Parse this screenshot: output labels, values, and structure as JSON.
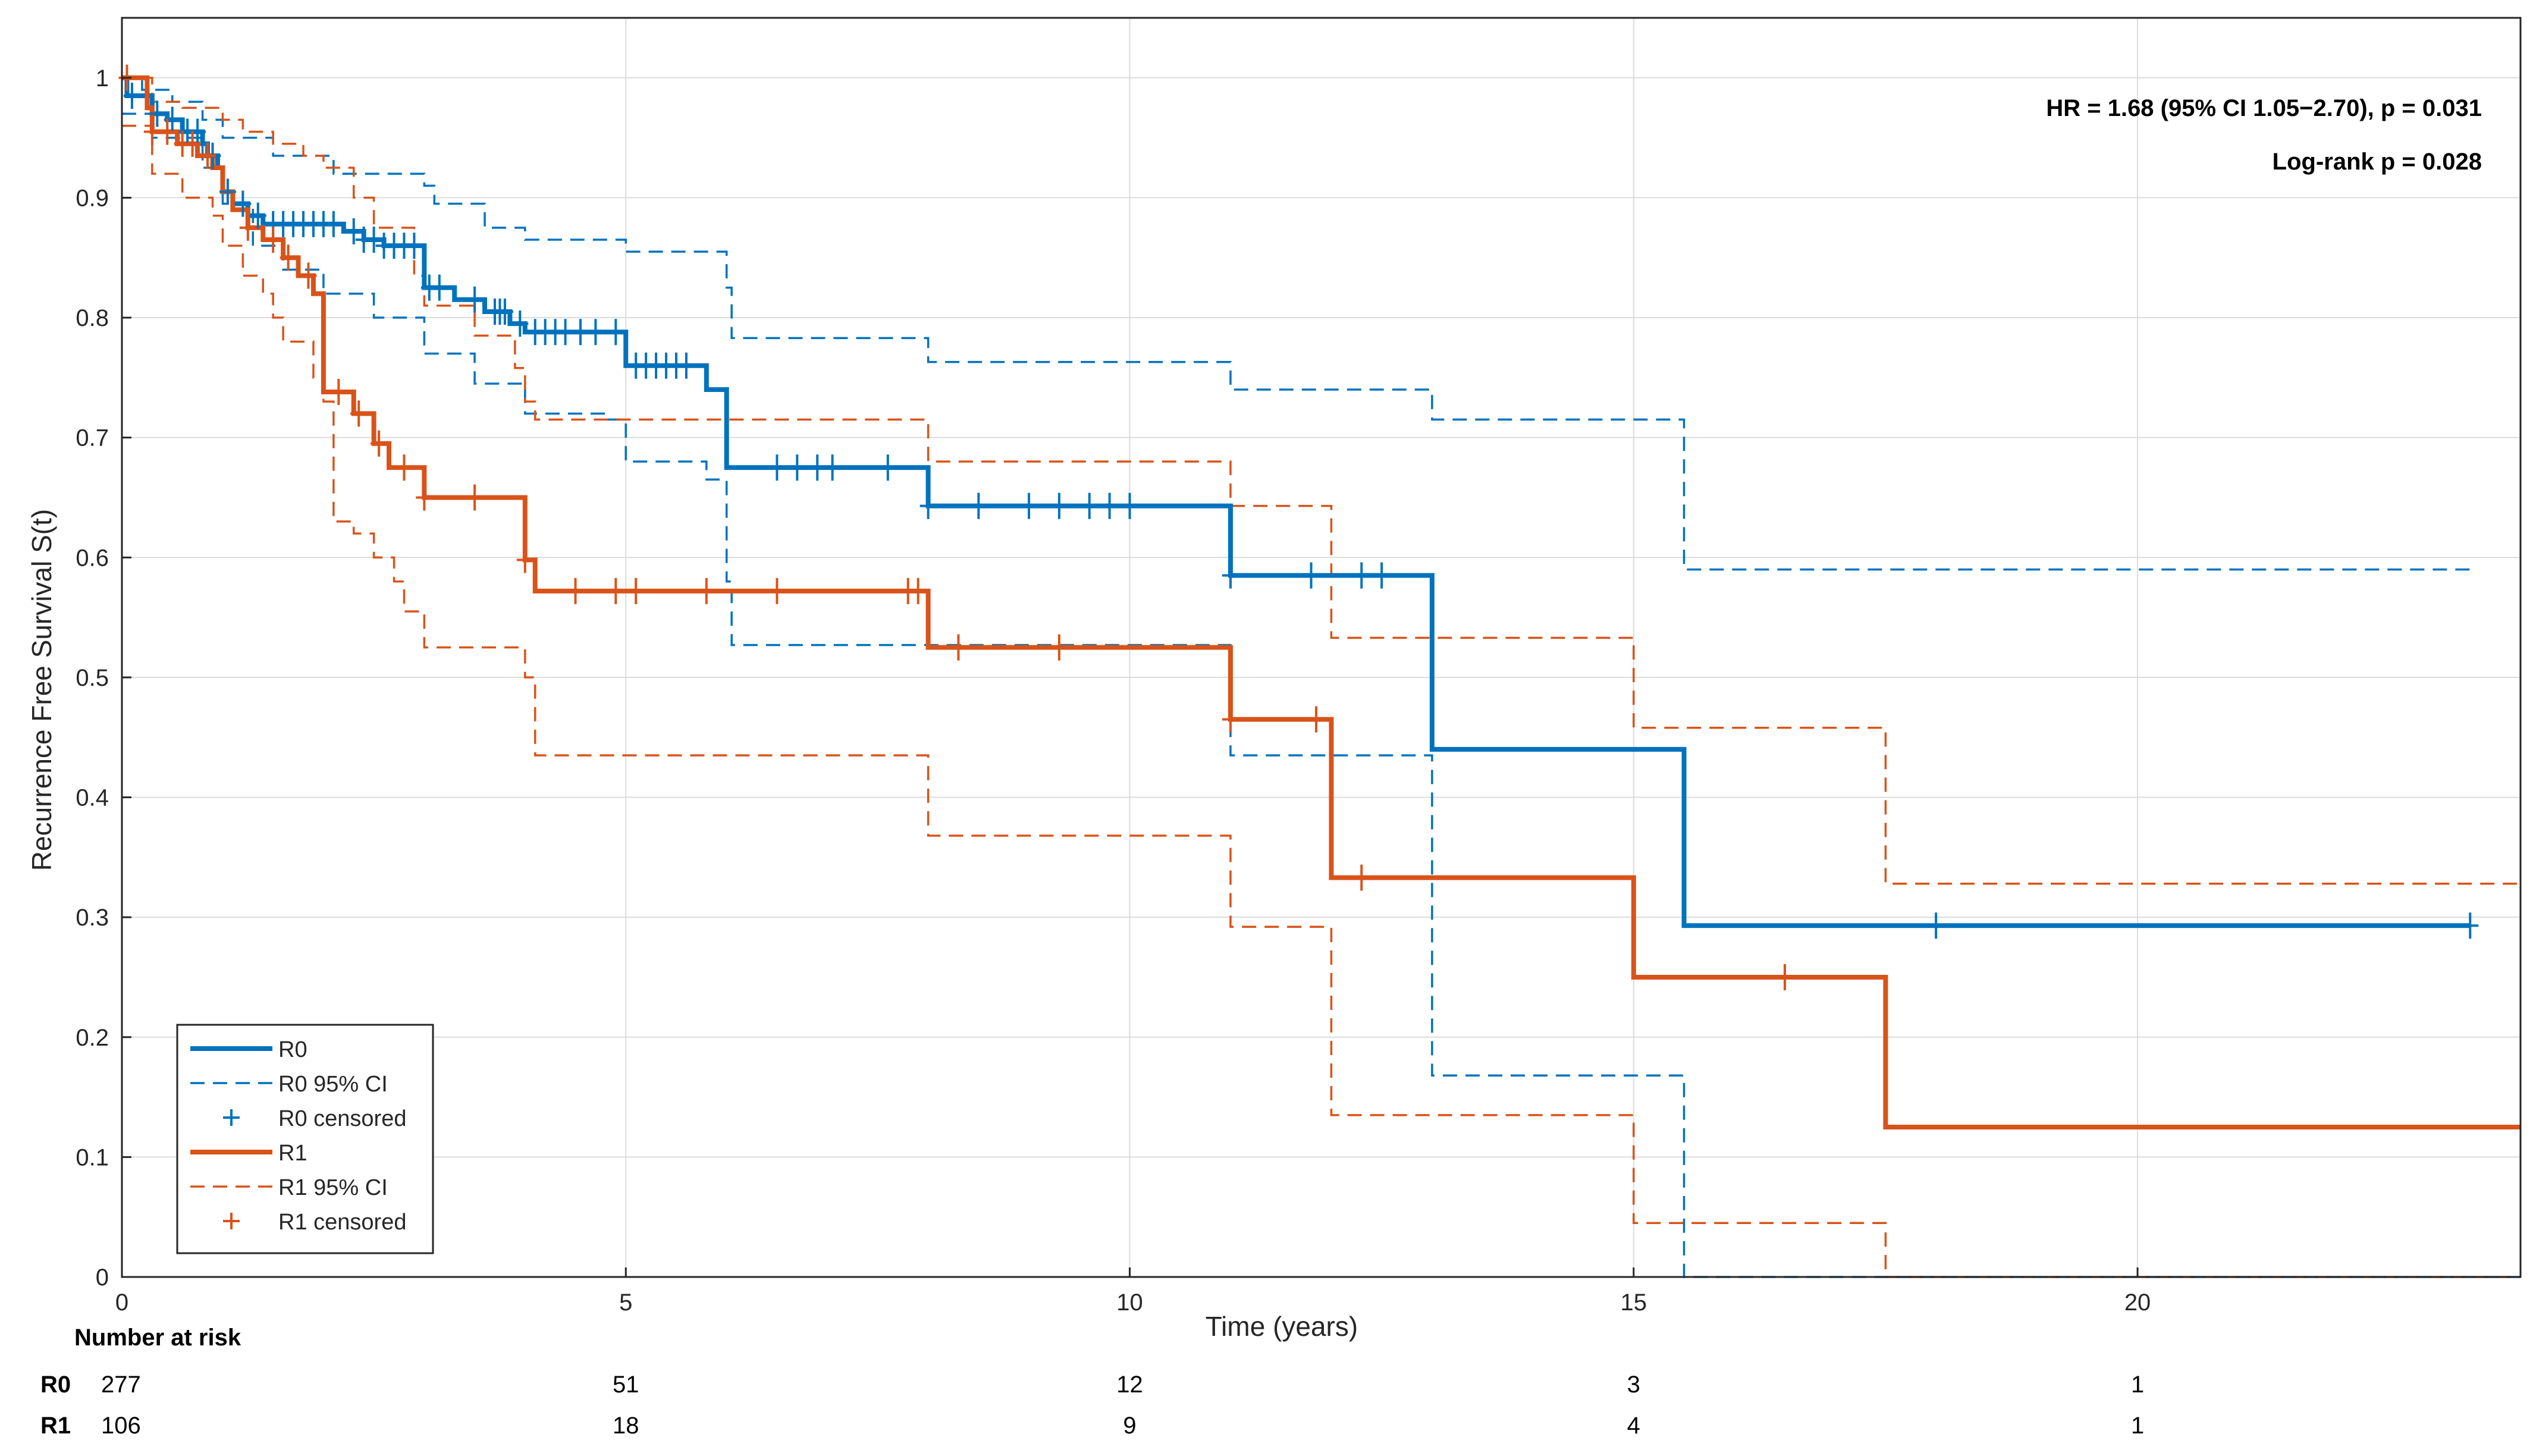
{
  "chart_data": {
    "type": "line",
    "subtype": "kaplan-meier",
    "xlabel": "Time (years)",
    "ylabel": "Recurrence Free Survival S(t)",
    "xlim": [
      0,
      23.8
    ],
    "ylim": [
      0,
      1.05
    ],
    "xticks": [
      0,
      5,
      10,
      15,
      20
    ],
    "yticks": [
      0,
      0.1,
      0.2,
      0.3,
      0.4,
      0.5,
      0.6,
      0.7,
      0.8,
      0.9,
      1
    ],
    "grid": true,
    "legend_position": "bottom-left",
    "annotations": [
      "HR = 1.68 (95% CI 1.05−2.70), p = 0.031",
      "Log-rank p = 0.028"
    ],
    "legend": [
      {
        "label": "R0",
        "series": "R0",
        "kind": "line"
      },
      {
        "label": "R0 95% CI",
        "series": "R0",
        "kind": "dash"
      },
      {
        "label": "R0 censored",
        "series": "R0",
        "kind": "plus"
      },
      {
        "label": "R1",
        "series": "R1",
        "kind": "line"
      },
      {
        "label": "R1 95% CI",
        "series": "R1",
        "kind": "dash"
      },
      {
        "label": "R1 censored",
        "series": "R1",
        "kind": "plus"
      }
    ],
    "series": [
      {
        "name": "R0",
        "color": "#0072BD",
        "steps": [
          [
            0,
            1
          ],
          [
            0.05,
            0.985
          ],
          [
            0.3,
            0.97
          ],
          [
            0.45,
            0.965
          ],
          [
            0.6,
            0.955
          ],
          [
            0.8,
            0.945
          ],
          [
            0.85,
            0.935
          ],
          [
            0.95,
            0.925
          ],
          [
            1.0,
            0.905
          ],
          [
            1.1,
            0.895
          ],
          [
            1.25,
            0.885
          ],
          [
            1.4,
            0.878
          ],
          [
            2.2,
            0.872
          ],
          [
            2.4,
            0.865
          ],
          [
            2.6,
            0.86
          ],
          [
            3.0,
            0.825
          ],
          [
            3.3,
            0.815
          ],
          [
            3.6,
            0.805
          ],
          [
            3.85,
            0.795
          ],
          [
            4.0,
            0.788
          ],
          [
            5.0,
            0.76
          ],
          [
            5.8,
            0.74
          ],
          [
            6.0,
            0.675
          ],
          [
            8.0,
            0.643
          ],
          [
            11.0,
            0.585
          ],
          [
            13.0,
            0.44
          ],
          [
            15.5,
            0.293
          ],
          [
            23.3,
            0.293
          ]
        ],
        "ci_upper": [
          [
            0,
            1
          ],
          [
            0.2,
            0.99
          ],
          [
            0.5,
            0.98
          ],
          [
            0.8,
            0.965
          ],
          [
            1.0,
            0.95
          ],
          [
            1.5,
            0.935
          ],
          [
            2.1,
            0.92
          ],
          [
            3.0,
            0.91
          ],
          [
            3.1,
            0.895
          ],
          [
            3.6,
            0.875
          ],
          [
            4.0,
            0.865
          ],
          [
            5.0,
            0.855
          ],
          [
            6.0,
            0.825
          ],
          [
            6.05,
            0.783
          ],
          [
            8.0,
            0.763
          ],
          [
            11.0,
            0.74
          ],
          [
            13.0,
            0.715
          ],
          [
            15.5,
            0.59
          ],
          [
            23.3,
            0.59
          ]
        ],
        "ci_lower": [
          [
            0,
            0.97
          ],
          [
            0.3,
            0.95
          ],
          [
            0.8,
            0.925
          ],
          [
            1.0,
            0.895
          ],
          [
            1.3,
            0.86
          ],
          [
            1.6,
            0.84
          ],
          [
            2.0,
            0.82
          ],
          [
            2.5,
            0.8
          ],
          [
            3.0,
            0.77
          ],
          [
            3.5,
            0.745
          ],
          [
            4.0,
            0.72
          ],
          [
            4.8,
            0.715
          ],
          [
            5.0,
            0.68
          ],
          [
            5.8,
            0.665
          ],
          [
            6.0,
            0.58
          ],
          [
            6.05,
            0.527
          ],
          [
            11.0,
            0.435
          ],
          [
            13.0,
            0.168
          ],
          [
            15.5,
            0
          ],
          [
            23.8,
            0
          ]
        ],
        "censored_x": [
          0.1,
          0.35,
          0.5,
          0.65,
          0.75,
          0.9,
          1.05,
          1.2,
          1.35,
          1.5,
          1.6,
          1.7,
          1.8,
          1.9,
          2.0,
          2.1,
          2.3,
          2.4,
          2.5,
          2.6,
          2.7,
          2.8,
          2.9,
          3.05,
          3.15,
          3.5,
          3.7,
          3.75,
          3.8,
          3.95,
          4.1,
          4.2,
          4.3,
          4.4,
          4.55,
          4.7,
          4.9,
          5.1,
          5.2,
          5.3,
          5.4,
          5.5,
          5.6,
          6.5,
          6.7,
          6.9,
          7.05,
          7.6,
          8.0,
          8.5,
          9.0,
          9.3,
          9.6,
          9.8,
          10.0,
          11.0,
          11.8,
          12.3,
          12.5,
          18.0,
          23.3
        ]
      },
      {
        "name": "R1",
        "color": "#D95319",
        "steps": [
          [
            0,
            1
          ],
          [
            0.25,
            0.975
          ],
          [
            0.3,
            0.955
          ],
          [
            0.55,
            0.945
          ],
          [
            0.75,
            0.935
          ],
          [
            0.9,
            0.925
          ],
          [
            1.0,
            0.905
          ],
          [
            1.1,
            0.89
          ],
          [
            1.25,
            0.875
          ],
          [
            1.4,
            0.865
          ],
          [
            1.6,
            0.85
          ],
          [
            1.75,
            0.835
          ],
          [
            1.9,
            0.82
          ],
          [
            2.0,
            0.738
          ],
          [
            2.3,
            0.72
          ],
          [
            2.5,
            0.695
          ],
          [
            2.65,
            0.675
          ],
          [
            3.0,
            0.65
          ],
          [
            4.0,
            0.598
          ],
          [
            4.1,
            0.572
          ],
          [
            8.0,
            0.525
          ],
          [
            11.0,
            0.465
          ],
          [
            12.0,
            0.333
          ],
          [
            15.0,
            0.25
          ],
          [
            17.5,
            0.125
          ],
          [
            23.8,
            0.125
          ]
        ],
        "ci_upper": [
          [
            0,
            1
          ],
          [
            0.3,
            0.98
          ],
          [
            0.6,
            0.975
          ],
          [
            1.0,
            0.965
          ],
          [
            1.2,
            0.955
          ],
          [
            1.5,
            0.945
          ],
          [
            1.8,
            0.935
          ],
          [
            2.0,
            0.925
          ],
          [
            2.3,
            0.9
          ],
          [
            2.5,
            0.875
          ],
          [
            2.9,
            0.835
          ],
          [
            3.0,
            0.81
          ],
          [
            3.5,
            0.785
          ],
          [
            3.9,
            0.758
          ],
          [
            4.0,
            0.73
          ],
          [
            4.1,
            0.715
          ],
          [
            8.0,
            0.68
          ],
          [
            11.0,
            0.643
          ],
          [
            12.0,
            0.533
          ],
          [
            15.0,
            0.458
          ],
          [
            17.5,
            0.328
          ],
          [
            23.8,
            0.328
          ]
        ],
        "ci_lower": [
          [
            0,
            0.96
          ],
          [
            0.3,
            0.92
          ],
          [
            0.6,
            0.9
          ],
          [
            0.9,
            0.885
          ],
          [
            1.0,
            0.86
          ],
          [
            1.2,
            0.835
          ],
          [
            1.4,
            0.82
          ],
          [
            1.5,
            0.8
          ],
          [
            1.6,
            0.78
          ],
          [
            1.9,
            0.75
          ],
          [
            2.0,
            0.73
          ],
          [
            2.1,
            0.63
          ],
          [
            2.3,
            0.62
          ],
          [
            2.5,
            0.6
          ],
          [
            2.7,
            0.58
          ],
          [
            2.8,
            0.555
          ],
          [
            3.0,
            0.525
          ],
          [
            4.0,
            0.5
          ],
          [
            4.1,
            0.435
          ],
          [
            8.0,
            0.368
          ],
          [
            11.0,
            0.292
          ],
          [
            12.0,
            0.135
          ],
          [
            15.0,
            0.045
          ],
          [
            17.5,
            0
          ],
          [
            23.8,
            0
          ]
        ],
        "censored_x": [
          0.05,
          0.3,
          0.45,
          0.6,
          0.7,
          0.85,
          1.25,
          1.5,
          1.65,
          1.85,
          2.15,
          2.35,
          2.55,
          2.8,
          3.0,
          3.5,
          4.0,
          4.5,
          4.9,
          5.1,
          5.8,
          6.5,
          7.8,
          7.9,
          8.3,
          9.3,
          11.0,
          11.85,
          12.3,
          16.5
        ]
      }
    ],
    "number_at_risk": {
      "title": "Number at risk",
      "rows": [
        {
          "label": "R0",
          "values": [
            "277",
            "51",
            "12",
            "3",
            "1"
          ]
        },
        {
          "label": "R1",
          "values": [
            "106",
            "18",
            "9",
            "4",
            "1"
          ]
        }
      ]
    }
  }
}
